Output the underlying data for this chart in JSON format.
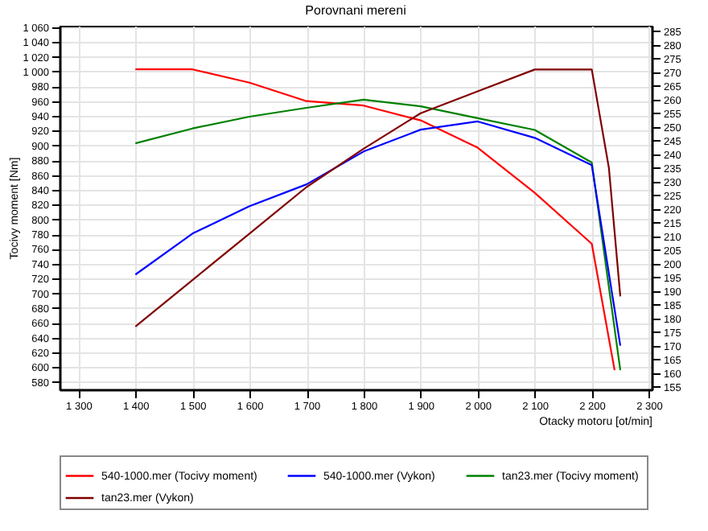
{
  "chart_data": {
    "type": "line",
    "title": "Porovnani mereni",
    "xlabel": "Otacky motoru [ot/min]",
    "ylabel": "Tocivy moment [Nm]",
    "xlim": [
      1267,
      2305
    ],
    "ylim": [
      570,
      1062
    ],
    "y2lim": [
      154,
      287
    ],
    "xticks": [
      {
        "value": 1300,
        "label": "1 300"
      },
      {
        "value": 1400,
        "label": "1 400"
      },
      {
        "value": 1500,
        "label": "1 500"
      },
      {
        "value": 1600,
        "label": "1 600"
      },
      {
        "value": 1700,
        "label": "1 700"
      },
      {
        "value": 1800,
        "label": "1 800"
      },
      {
        "value": 1900,
        "label": "1 900"
      },
      {
        "value": 2000,
        "label": "2 000"
      },
      {
        "value": 2100,
        "label": "2 100"
      },
      {
        "value": 2200,
        "label": "2 200"
      },
      {
        "value": 2300,
        "label": "2 300"
      }
    ],
    "yticks": [
      580,
      600,
      620,
      640,
      660,
      680,
      700,
      720,
      740,
      760,
      780,
      800,
      820,
      840,
      860,
      880,
      900,
      920,
      940,
      960,
      980,
      {
        "value": 1000,
        "label": "1 000"
      },
      {
        "value": 1020,
        "label": "1 020"
      },
      {
        "value": 1040,
        "label": "1 040"
      },
      {
        "value": 1060,
        "label": "1 060"
      }
    ],
    "y2ticks": [
      155,
      160,
      165,
      170,
      175,
      180,
      185,
      190,
      195,
      200,
      205,
      210,
      215,
      220,
      225,
      230,
      235,
      240,
      245,
      250,
      255,
      260,
      265,
      270,
      275,
      280,
      285
    ],
    "grid": true,
    "legend": "bottom",
    "marker": "none",
    "line_style": "solid",
    "series": [
      {
        "name": "540-1000.mer  (Tocivy moment)",
        "color": "#ff0000",
        "x": [
          1400,
          1500,
          1600,
          1700,
          1800,
          1900,
          2000,
          2100,
          2200,
          2240
        ],
        "values": [
          1003,
          1003,
          985,
          960,
          954,
          934,
          897,
          836,
          767,
          596
        ]
      },
      {
        "name": "540-1000.mer  (Vykon)",
        "color": "#0000ff",
        "axis": "y2",
        "x": [
          1400,
          1500,
          1600,
          1700,
          1800,
          1900,
          2000,
          2100,
          2200,
          2250
        ],
        "values": [
          196,
          211,
          221,
          229,
          241,
          249,
          252,
          246,
          236,
          170
        ]
      },
      {
        "name": "tan23.mer  (Tocivy moment)",
        "color": "#008000",
        "x": [
          1400,
          1500,
          1600,
          1700,
          1800,
          1900,
          2000,
          2100,
          2200,
          2250
        ],
        "values": [
          903,
          923,
          939,
          951,
          962,
          953,
          937,
          921,
          877,
          596
        ]
      },
      {
        "name": "tan23.mer  (Vykon)",
        "color": "#800000",
        "axis": "y2",
        "x": [
          1400,
          1500,
          1600,
          1700,
          1800,
          1900,
          2000,
          2100,
          2200,
          2230,
          2250
        ],
        "values": [
          177,
          194,
          211,
          228,
          242,
          255,
          263,
          271,
          271,
          235,
          188
        ]
      }
    ]
  }
}
